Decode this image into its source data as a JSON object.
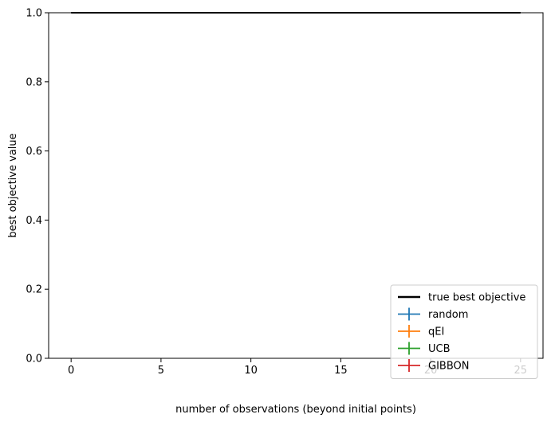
{
  "chart_data": {
    "type": "line",
    "title": "",
    "xlabel": "number of observations (beyond initial points)",
    "ylabel": "best objective value",
    "xlim": [
      -1.25,
      26.25
    ],
    "ylim": [
      0.0,
      1.0
    ],
    "xticks": [
      0,
      5,
      10,
      15,
      20,
      25
    ],
    "xtick_labels": [
      "0",
      "5",
      "10",
      "15",
      "20",
      "25"
    ],
    "yticks": [
      0.0,
      0.2,
      0.4,
      0.6,
      0.8,
      1.0
    ],
    "ytick_labels": [
      "0.0",
      "0.2",
      "0.4",
      "0.6",
      "0.8",
      "1.0"
    ],
    "grid": false,
    "legend_position": "lower-right",
    "series": [
      {
        "name": "true best objective",
        "color": "#000000",
        "style": "line",
        "x": [
          0,
          25
        ],
        "y": [
          1.0,
          1.0
        ]
      },
      {
        "name": "random",
        "color": "#1f77b4",
        "style": "errorbar",
        "x": [],
        "y": []
      },
      {
        "name": "qEI",
        "color": "#ff7f0e",
        "style": "errorbar",
        "x": [],
        "y": []
      },
      {
        "name": "UCB",
        "color": "#2ca02c",
        "style": "errorbar",
        "x": [],
        "y": []
      },
      {
        "name": "GIBBON",
        "color": "#d62728",
        "style": "errorbar",
        "x": [],
        "y": []
      }
    ]
  }
}
